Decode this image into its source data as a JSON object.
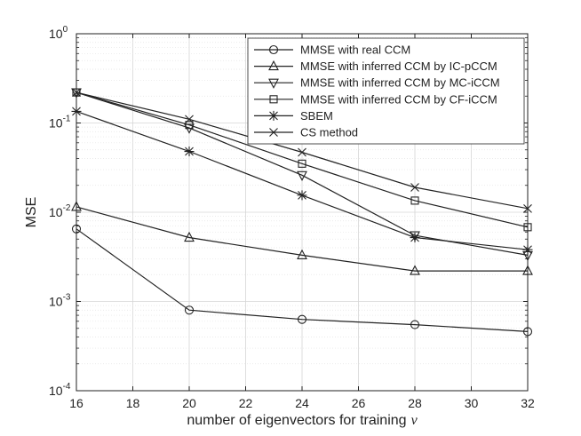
{
  "chart_data": {
    "type": "line",
    "title": "",
    "xlabel": "number of eigenvectors for training",
    "xlabel_symbol": "ν",
    "ylabel": "MSE",
    "yscale": "log",
    "xlim": [
      16,
      32
    ],
    "ylim": [
      0.0001,
      1
    ],
    "x_ticks": [
      16,
      18,
      20,
      22,
      24,
      26,
      28,
      30,
      32
    ],
    "y_ticks": [
      {
        "value": 1,
        "base": "10",
        "exp": "0"
      },
      {
        "value": 0.1,
        "base": "10",
        "exp": "-1"
      },
      {
        "value": 0.01,
        "base": "10",
        "exp": "-2"
      },
      {
        "value": 0.001,
        "base": "10",
        "exp": "-3"
      },
      {
        "value": 0.0001,
        "base": "10",
        "exp": "-4"
      }
    ],
    "grid": true,
    "legend_position": "top-right",
    "x": [
      16,
      20,
      24,
      28,
      32
    ],
    "series": [
      {
        "name": "MMSE with real CCM",
        "marker": "circle",
        "values": [
          0.0065,
          0.0008,
          0.00063,
          0.00055,
          0.00046
        ]
      },
      {
        "name": "MMSE with inferred CCM by IC-pCCM",
        "marker": "triangle-up",
        "values": [
          0.0115,
          0.0052,
          0.0033,
          0.0022,
          0.0022
        ]
      },
      {
        "name": "MMSE with inferred CCM by MC-iCCM",
        "marker": "triangle-down",
        "values": [
          0.22,
          0.088,
          0.026,
          0.0055,
          0.0033
        ]
      },
      {
        "name": "MMSE with inferred CCM by CF-iCCM",
        "marker": "square",
        "values": [
          0.22,
          0.095,
          0.035,
          0.0135,
          0.0068
        ]
      },
      {
        "name": "SBEM",
        "marker": "asterisk",
        "values": [
          0.135,
          0.048,
          0.0155,
          0.0052,
          0.0038
        ]
      },
      {
        "name": "CS method",
        "marker": "x",
        "values": [
          0.22,
          0.11,
          0.047,
          0.019,
          0.011
        ]
      }
    ]
  }
}
